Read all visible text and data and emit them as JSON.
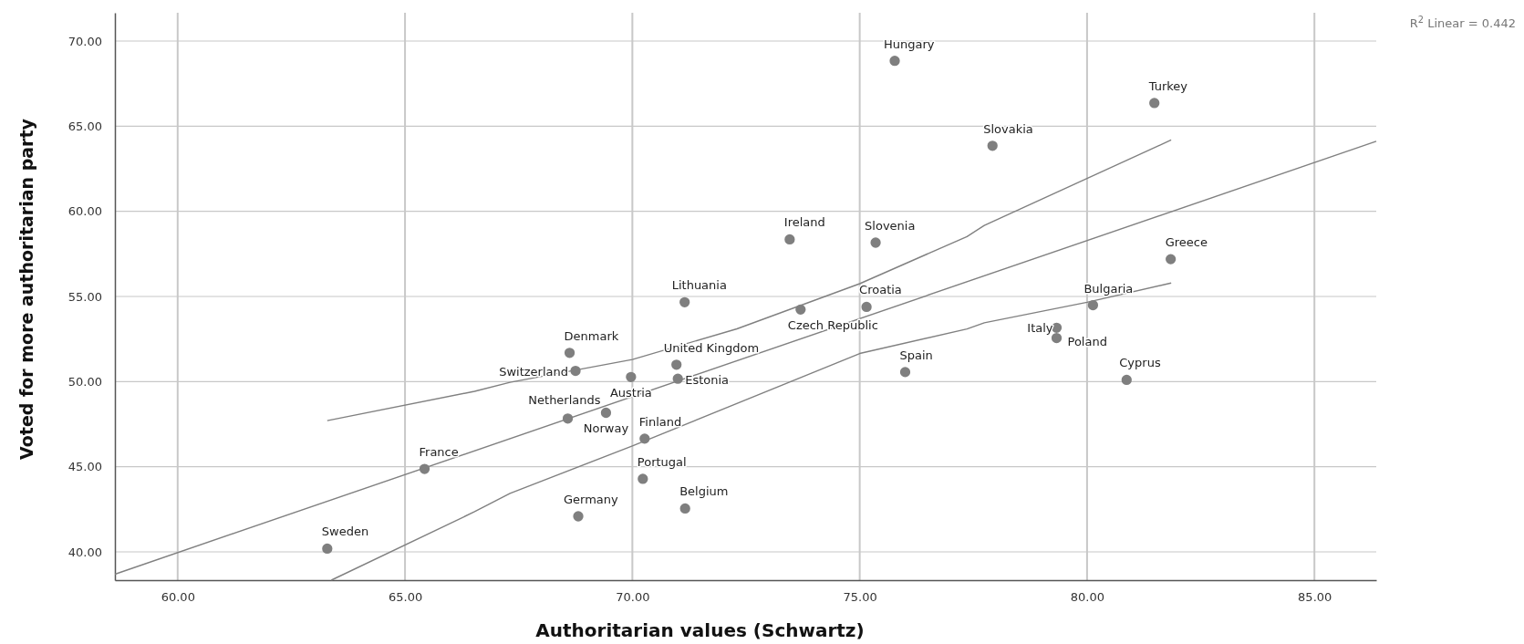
{
  "chart_data": {
    "type": "scatter",
    "xlabel": "Authoritarian values (Schwartz)",
    "ylabel": "Voted for more authoritarian party",
    "xlim": [
      58.62,
      86.36
    ],
    "ylim": [
      38.34,
      71.66
    ],
    "xticks": [
      {
        "value": 60,
        "label": "60.00"
      },
      {
        "value": 65,
        "label": "65.00"
      },
      {
        "value": 70,
        "label": "70.00"
      },
      {
        "value": 75,
        "label": "75.00"
      },
      {
        "value": 80,
        "label": "80.00"
      },
      {
        "value": 85,
        "label": "85.00"
      }
    ],
    "yticks": [
      {
        "value": 40,
        "label": "40.00"
      },
      {
        "value": 45,
        "label": "45.00"
      },
      {
        "value": 50,
        "label": "50.00"
      },
      {
        "value": 55,
        "label": "55.00"
      },
      {
        "value": 60,
        "label": "60.00"
      },
      {
        "value": 65,
        "label": "65.00"
      },
      {
        "value": 70,
        "label": "70.00"
      }
    ],
    "grid": true,
    "marker": "circle",
    "series": [
      {
        "color": "#7f7f7f",
        "x": [
          63.29,
          65.43,
          68.58,
          69.42,
          68.62,
          68.75,
          69.97,
          70.97,
          71.0,
          70.27,
          70.23,
          68.81,
          71.16,
          71.15,
          73.7,
          73.46,
          75.35,
          75.15,
          76.0,
          75.77,
          77.92,
          81.48,
          81.84,
          80.13,
          79.33,
          79.33,
          80.87
        ],
        "values": [
          40.19,
          44.87,
          47.83,
          48.17,
          51.69,
          50.63,
          50.27,
          50.99,
          50.17,
          46.65,
          44.29,
          42.09,
          42.55,
          54.66,
          54.23,
          58.35,
          58.16,
          54.39,
          50.56,
          68.84,
          63.85,
          66.36,
          57.19,
          54.49,
          53.16,
          52.56,
          50.1
        ]
      },
      {
        "type": "line",
        "color": "#808080",
        "line_style": "solid",
        "marker": "none",
        "x": [
          58.62,
          86.36
        ],
        "values": [
          38.69,
          64.11
        ]
      },
      {
        "type": "line",
        "color": "#808080",
        "line_style": "solid",
        "marker": "none",
        "x": [
          63.29,
          66.53,
          67.31,
          70,
          72.3,
          75,
          77.36,
          77.74,
          81.85
        ],
        "values": [
          47.71,
          49.43,
          49.96,
          51.3,
          53.1,
          55.75,
          58.52,
          59.17,
          64.19
        ]
      },
      {
        "type": "line",
        "color": "#808080",
        "line_style": "solid",
        "marker": "none",
        "x": [
          63.38,
          66.53,
          67.31,
          70,
          75,
          77.36,
          77.74,
          80,
          81.85
        ],
        "values": [
          38.34,
          42.36,
          43.44,
          46.22,
          51.65,
          53.09,
          53.45,
          54.66,
          55.79
        ]
      }
    ],
    "annotations": [
      {
        "text": "Sweden",
        "x": 63.29,
        "y": 40.19
      },
      {
        "text": "France",
        "x": 65.43,
        "y": 44.87
      },
      {
        "text": "Netherlands",
        "x": 68.58,
        "y": 47.83
      },
      {
        "text": "Norway",
        "x": 69.42,
        "y": 48.17
      },
      {
        "text": "Denmark",
        "x": 68.62,
        "y": 51.69
      },
      {
        "text": "Switzerland",
        "x": 68.75,
        "y": 50.63
      },
      {
        "text": "Austria",
        "x": 69.97,
        "y": 50.27
      },
      {
        "text": "United Kingdom",
        "x": 70.97,
        "y": 50.99
      },
      {
        "text": "Estonia",
        "x": 71.0,
        "y": 50.17
      },
      {
        "text": "Finland",
        "x": 70.27,
        "y": 46.65
      },
      {
        "text": "Portugal",
        "x": 70.23,
        "y": 44.29
      },
      {
        "text": "Germany",
        "x": 68.81,
        "y": 42.09
      },
      {
        "text": "Belgium",
        "x": 71.16,
        "y": 42.55
      },
      {
        "text": "Lithuania",
        "x": 71.15,
        "y": 54.66
      },
      {
        "text": "Czech Republic",
        "x": 73.7,
        "y": 54.23
      },
      {
        "text": "Ireland",
        "x": 73.46,
        "y": 58.35
      },
      {
        "text": "Slovenia",
        "x": 75.35,
        "y": 58.16
      },
      {
        "text": "Croatia",
        "x": 75.15,
        "y": 54.39
      },
      {
        "text": "Spain",
        "x": 76.0,
        "y": 50.56
      },
      {
        "text": "Hungary",
        "x": 75.77,
        "y": 68.84
      },
      {
        "text": "Slovakia",
        "x": 77.92,
        "y": 63.85
      },
      {
        "text": "Turkey",
        "x": 81.48,
        "y": 66.36
      },
      {
        "text": "Greece",
        "x": 81.84,
        "y": 57.19
      },
      {
        "text": "Bulgaria",
        "x": 80.13,
        "y": 54.49
      },
      {
        "text": "Italy",
        "x": 79.33,
        "y": 53.16
      },
      {
        "text": "Poland",
        "x": 79.33,
        "y": 52.56
      },
      {
        "text": "Cyprus",
        "x": 80.87,
        "y": 50.1
      },
      "R$^{2}$ Linear = 0.442"
    ]
  }
}
